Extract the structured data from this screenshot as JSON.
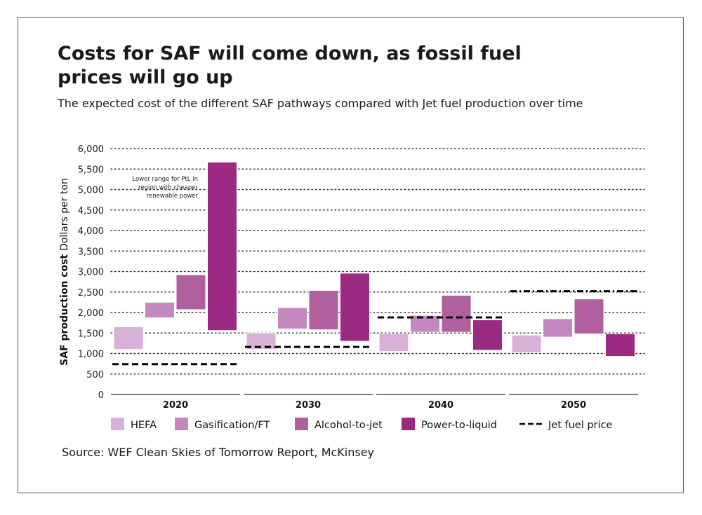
{
  "title": "Costs for SAF will come down, as fossil fuel prices will go up",
  "subtitle": "The expected cost of the different SAF pathways compared with Jet fuel production over time",
  "source": "Source: WEF Clean Skies of Tomorrow Report, McKinsey",
  "colors": {
    "hefa": "#d8b0d8",
    "gasification": "#c487c0",
    "alcohol": "#b0609f",
    "ptl": "#9a2a82",
    "jet": "#000000",
    "grid": "#333333"
  },
  "chart_data": {
    "type": "floating-bar",
    "title": "Costs for SAF will come down, as fossil fuel prices will go up",
    "ylabel_bold": "SAF production cost",
    "ylabel": "Dollars per ton",
    "ylim": [
      0,
      6000
    ],
    "yticks": [
      "0",
      "500",
      "1,000",
      "1,500",
      "2,000",
      "2,500",
      "3,000",
      "3,500",
      "4,000",
      "4,500",
      "5,000",
      "5,500",
      "6,000"
    ],
    "categories": [
      "2020",
      "2030",
      "2040",
      "2050"
    ],
    "series": [
      {
        "name": "HEFA",
        "color_key": "hefa",
        "ranges": [
          [
            1100,
            1650
          ],
          [
            1100,
            1500
          ],
          [
            1050,
            1480
          ],
          [
            1020,
            1450
          ]
        ]
      },
      {
        "name": "Gasification/FT",
        "color_key": "gasification",
        "ranges": [
          [
            1870,
            2250
          ],
          [
            1600,
            2120
          ],
          [
            1520,
            1930
          ],
          [
            1400,
            1850
          ]
        ]
      },
      {
        "name": "Alcohol-to-jet",
        "color_key": "alcohol",
        "ranges": [
          [
            2070,
            2920
          ],
          [
            1580,
            2540
          ],
          [
            1520,
            2420
          ],
          [
            1480,
            2330
          ]
        ]
      },
      {
        "name": "Power-to-liquid",
        "color_key": "ptl",
        "ranges": [
          [
            1560,
            5670
          ],
          [
            1300,
            2960
          ],
          [
            1080,
            1820
          ],
          [
            930,
            1480
          ]
        ]
      }
    ],
    "jet_fuel_price": {
      "name": "Jet fuel price",
      "values": [
        740,
        1160,
        1880,
        2520
      ]
    },
    "annotation": {
      "lines": [
        "Lower range for PtL in",
        "region with cheaper",
        "renewable power"
      ]
    },
    "legend_position": "bottom"
  }
}
